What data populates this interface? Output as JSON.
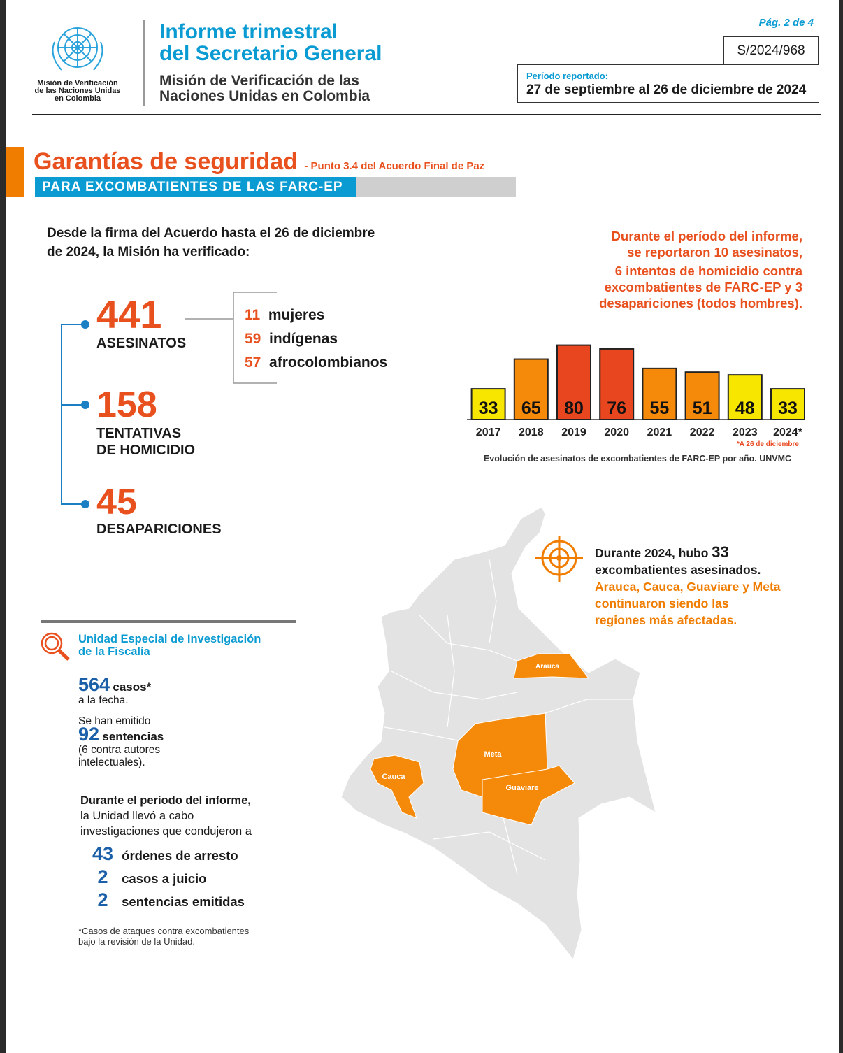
{
  "header": {
    "org_lines": [
      "Misión de Verificación",
      "de las Naciones Unidas",
      "en Colombia"
    ],
    "title_lines": [
      "Informe trimestral",
      "del Secretario General"
    ],
    "subtitle_lines": [
      "Misión de Verificación de las",
      "Naciones Unidas en Colombia"
    ],
    "page": "Pág. 2 de 4",
    "doc_code": "S/2024/968",
    "period_label": "Período reportado:",
    "period": "27 de septiembre al 26 de diciembre de 2024"
  },
  "section": {
    "title": "Garantías de seguridad",
    "subtitle": "- Punto 3.4 del Acuerdo Final de Paz",
    "banner": "PARA EXCOMBATIENTES DE LAS FARC-EP"
  },
  "intro_lines": [
    "Desde la firma del Acuerdo hasta el 26 de diciembre",
    "de 2024, la Misión ha verificado:"
  ],
  "stats": [
    {
      "value": "441",
      "label_lines": [
        "ASESINATOS"
      ]
    },
    {
      "value": "158",
      "label_lines": [
        "TENTATIVAS",
        "DE HOMICIDIO"
      ]
    },
    {
      "value": "45",
      "label_lines": [
        "DESAPARICIONES"
      ]
    }
  ],
  "breakdown": [
    {
      "value": "11",
      "label": "mujeres"
    },
    {
      "value": "59",
      "label": "indígenas"
    },
    {
      "value": "57",
      "label": "afrocolombianos"
    }
  ],
  "period_note_lines": [
    "Durante el período del informe,",
    "se reportaron 10 asesinatos,",
    "6 intentos de homicidio contra",
    "excombatientes de FARC-EP y 3",
    "desapariciones (todos hombres)."
  ],
  "chart_data": {
    "type": "bar",
    "categories": [
      "2017",
      "2018",
      "2019",
      "2020",
      "2021",
      "2022",
      "2023",
      "2024*"
    ],
    "values": [
      33,
      65,
      80,
      76,
      55,
      51,
      48,
      33
    ],
    "colors": [
      "#f7e600",
      "#f58a0a",
      "#e8461e",
      "#e8461e",
      "#f58a0a",
      "#f58a0a",
      "#f7e600",
      "#f7e600"
    ],
    "footnote": "*A 26 de diciembre",
    "caption": "Evolución de asesinatos de excombatientes de FARC-EP por año. UNVMC"
  },
  "map": {
    "note_prefix": "Durante 2024, hubo",
    "note_value": "33",
    "note_suffix": "excombatientes asesinados.",
    "highlight_lines": [
      "Arauca, Cauca, Guaviare y Meta",
      "continuaron siendo las",
      "regiones más afectadas."
    ],
    "regions": [
      "Arauca",
      "Meta",
      "Cauca",
      "Guaviare"
    ]
  },
  "fiscalia": {
    "title_lines": [
      "Unidad Especial de Investigación",
      "de la Fiscalía"
    ],
    "cases_value": "564",
    "cases_label": "casos*",
    "cases_note": "a la fecha.",
    "sentences_intro": "Se han emitido",
    "sentences_value": "92",
    "sentences_label": "sentencias",
    "sentences_note_lines": [
      "(6 contra autores",
      "intelectuales)."
    ],
    "period_lines": [
      "Durante el período del informe,",
      "la Unidad llevó a cabo",
      "investigaciones que condujeron a"
    ],
    "results": [
      {
        "value": "43",
        "label": "órdenes de arresto"
      },
      {
        "value": "2",
        "label": "casos a juicio"
      },
      {
        "value": "2",
        "label": "sentencias emitidas"
      }
    ],
    "footnote_lines": [
      "*Casos de ataques contra excombatientes",
      "bajo la revisión de la Unidad."
    ]
  }
}
